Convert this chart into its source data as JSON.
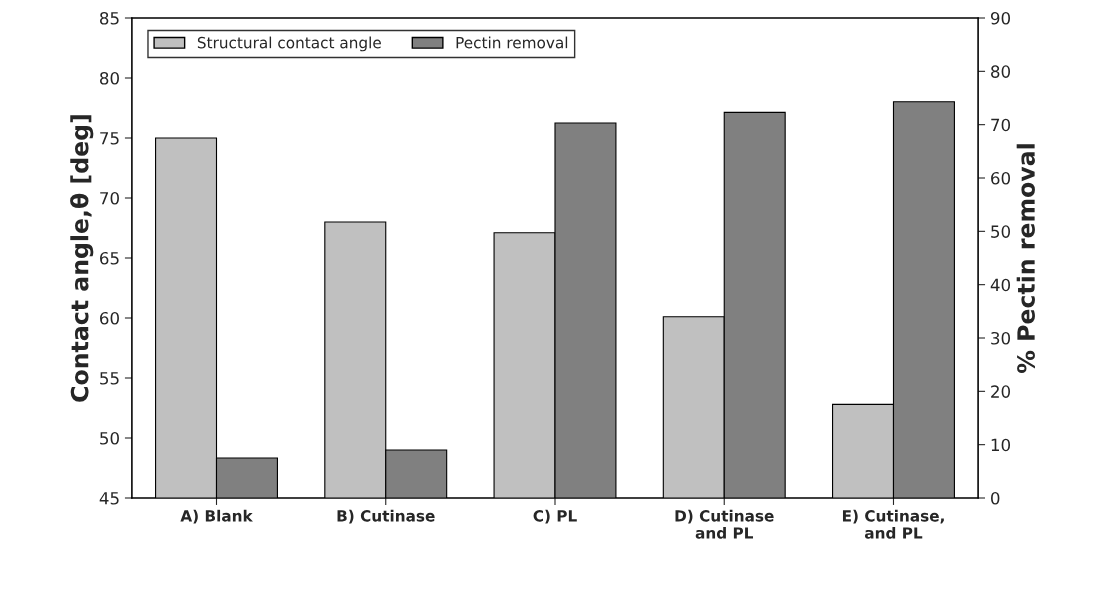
{
  "chart_data": {
    "type": "bar",
    "categories": [
      "A) Blank",
      "B) Cutinase",
      "C) PL",
      "D) Cutinase\nand PL",
      "E) Cutinase,\nand PL"
    ],
    "series": [
      {
        "name": "Structural contact angle",
        "color": "#c0c0c0",
        "values": [
          75,
          68,
          67.1,
          60.1,
          52.8
        ]
      },
      {
        "name": "Pectin removal",
        "color": "#808080",
        "axis": "y2",
        "values": [
          7.5,
          9,
          70.3,
          72.3,
          74.3
        ]
      }
    ],
    "ylabel": "Contact angle,θ [deg]",
    "y2label": "% Pectin removal",
    "ylim": [
      45,
      85
    ],
    "yticks": [
      45,
      50,
      55,
      60,
      65,
      70,
      75,
      80,
      85
    ],
    "y2lim": [
      0,
      90
    ],
    "y2ticks": [
      0,
      10,
      20,
      30,
      40,
      50,
      60,
      70,
      80,
      90
    ],
    "grid": false,
    "legend": "top left"
  }
}
